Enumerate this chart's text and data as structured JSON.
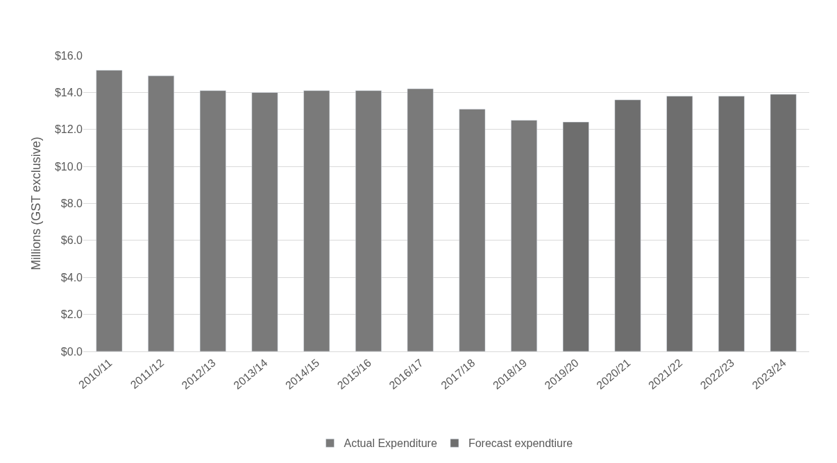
{
  "chart_data": {
    "type": "bar",
    "ylabel": "Millions (GST exclusive)",
    "categories": [
      "2010/11",
      "2011/12",
      "2012/13",
      "2013/14",
      "2014/15",
      "2015/16",
      "2016/17",
      "2017/18",
      "2018/19",
      "2019/20",
      "2020/21",
      "2021/22",
      "2022/23",
      "2023/24"
    ],
    "series": [
      {
        "name": "Actual Expenditure",
        "color": "#7a7a7a",
        "values": [
          15.2,
          14.9,
          14.1,
          14.0,
          14.1,
          14.1,
          14.2,
          13.1,
          12.5,
          null,
          null,
          null,
          null,
          null
        ]
      },
      {
        "name": "Forecast expendtiure",
        "color": "#6e6e6e",
        "values": [
          null,
          null,
          null,
          null,
          null,
          null,
          null,
          null,
          null,
          12.4,
          13.6,
          13.8,
          13.8,
          13.9
        ]
      }
    ],
    "ylim": [
      0,
      16
    ],
    "yticks": [
      {
        "value": 0,
        "label": "$0.0"
      },
      {
        "value": 2,
        "label": "$2.0"
      },
      {
        "value": 4,
        "label": "$4.0"
      },
      {
        "value": 6,
        "label": "$6.0"
      },
      {
        "value": 8,
        "label": "$8.0"
      },
      {
        "value": 10,
        "label": "$10.0"
      },
      {
        "value": 12,
        "label": "$12.0"
      },
      {
        "value": 14,
        "label": "$14.0"
      },
      {
        "value": 16,
        "label": "$16.0"
      }
    ],
    "grid": "y",
    "legend": "bottom"
  }
}
